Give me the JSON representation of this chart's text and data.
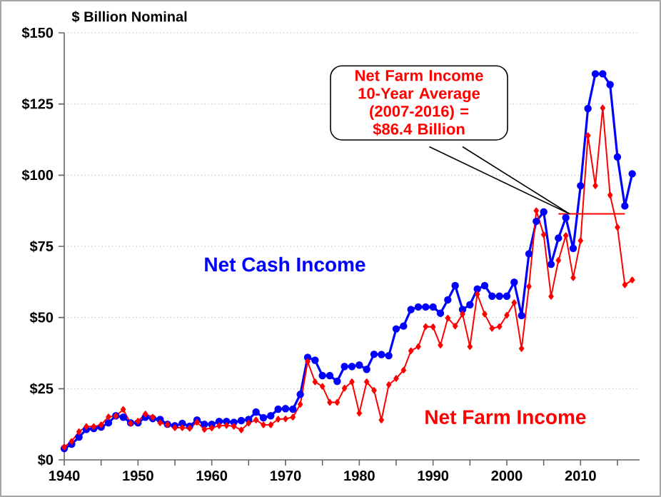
{
  "chart_data": {
    "type": "line",
    "ylabel": "$ Billion Nominal",
    "xlim": [
      1940,
      2018
    ],
    "ylim": [
      0,
      150
    ],
    "xticks": [
      1940,
      {
        "value": 1945,
        "label": null
      },
      1950,
      {
        "value": 1955,
        "label": null
      },
      1960,
      {
        "value": 1965,
        "label": null
      },
      1970,
      {
        "value": 1975,
        "label": null
      },
      1980,
      {
        "value": 1985,
        "label": null
      },
      1990,
      {
        "value": 1995,
        "label": null
      },
      2000,
      {
        "value": 2005,
        "label": null
      },
      2010,
      {
        "value": 2015,
        "label": null
      }
    ],
    "yticks": [
      {
        "value": 0,
        "label": "$0"
      },
      {
        "value": 25,
        "label": "$25"
      },
      {
        "value": 50,
        "label": "$50"
      },
      {
        "value": 75,
        "label": "$75"
      },
      {
        "value": 100,
        "label": "$100"
      },
      {
        "value": 125,
        "label": "$125"
      },
      {
        "value": 150,
        "label": "$150"
      }
    ],
    "grid": "y",
    "legend": false,
    "x": [
      1940,
      1941,
      1942,
      1943,
      1944,
      1945,
      1946,
      1947,
      1948,
      1949,
      1950,
      1951,
      1952,
      1953,
      1954,
      1955,
      1956,
      1957,
      1958,
      1959,
      1960,
      1961,
      1962,
      1963,
      1964,
      1965,
      1966,
      1967,
      1968,
      1969,
      1970,
      1971,
      1972,
      1973,
      1974,
      1975,
      1976,
      1977,
      1978,
      1979,
      1980,
      1981,
      1982,
      1983,
      1984,
      1985,
      1986,
      1987,
      1988,
      1989,
      1990,
      1991,
      1992,
      1993,
      1994,
      1995,
      1996,
      1997,
      1998,
      1999,
      2000,
      2001,
      2002,
      2003,
      2004,
      2005,
      2006,
      2007,
      2008,
      2009,
      2010,
      2011,
      2012,
      2013,
      2014,
      2015,
      2016,
      2017
    ],
    "series": [
      {
        "name": "Net Cash Income",
        "color": "#0000ff",
        "marker": "circle",
        "values": [
          4,
          5.5,
          8,
          10.7,
          11,
          11.5,
          13,
          15.5,
          15,
          13,
          13,
          15,
          14.5,
          14.2,
          12.5,
          12,
          12.8,
          11.8,
          14,
          12.5,
          12.5,
          13.5,
          13.5,
          13.2,
          13.8,
          14.2,
          16.8,
          14.8,
          15.5,
          17.8,
          18,
          17.8,
          23,
          36,
          35,
          29.6,
          29.6,
          27.6,
          32.8,
          32.8,
          33.3,
          31.8,
          37.1,
          37,
          36.6,
          46,
          47,
          52.8,
          53.7,
          53.7,
          53.7,
          51.5,
          56.2,
          61.2,
          52.8,
          54.5,
          60,
          61.2,
          57.5,
          57.5,
          57.5,
          62.4,
          50.7,
          72.4,
          83.8,
          87.1,
          68.7,
          77.9,
          85.1,
          74.3,
          96.3,
          123.4,
          135.6,
          135.6,
          131.8,
          106.4,
          89.2,
          100.5
        ]
      },
      {
        "name": "Net Farm Income",
        "color": "#ff0000",
        "marker": "diamond",
        "values": [
          4.5,
          6.5,
          9.9,
          11.7,
          11.7,
          12.3,
          15.1,
          15.4,
          17.7,
          12.8,
          13.6,
          16.1,
          15,
          13,
          12.4,
          11.3,
          11.3,
          11.1,
          13.2,
          10.7,
          11.2,
          12,
          12.1,
          11.8,
          10.5,
          12.9,
          14,
          12.3,
          12.3,
          14.3,
          14.4,
          15,
          19.5,
          34.5,
          27.4,
          25.8,
          20.2,
          20.2,
          25.2,
          27.4,
          16.4,
          27.4,
          24.4,
          14,
          26.4,
          28.6,
          31.5,
          38.3,
          39.8,
          46.8,
          46.7,
          40.3,
          49.8,
          47,
          51.2,
          39.8,
          58.2,
          51.2,
          46.2,
          46.8,
          50.8,
          55.2,
          39.1,
          60.9,
          87.5,
          79.1,
          57.4,
          70.1,
          78.8,
          64,
          77,
          113.9,
          96.3,
          123.6,
          93,
          81.7,
          61.5,
          63.2
        ]
      },
      {
        "color": "#ff0000",
        "marker": "none",
        "x": [
          2007,
          2016
        ],
        "values": [
          86.4,
          86.4
        ]
      }
    ],
    "annotations": [
      "Net Farm Income 10-Year Average (2007-2016) = $86.4 Billion"
    ]
  }
}
